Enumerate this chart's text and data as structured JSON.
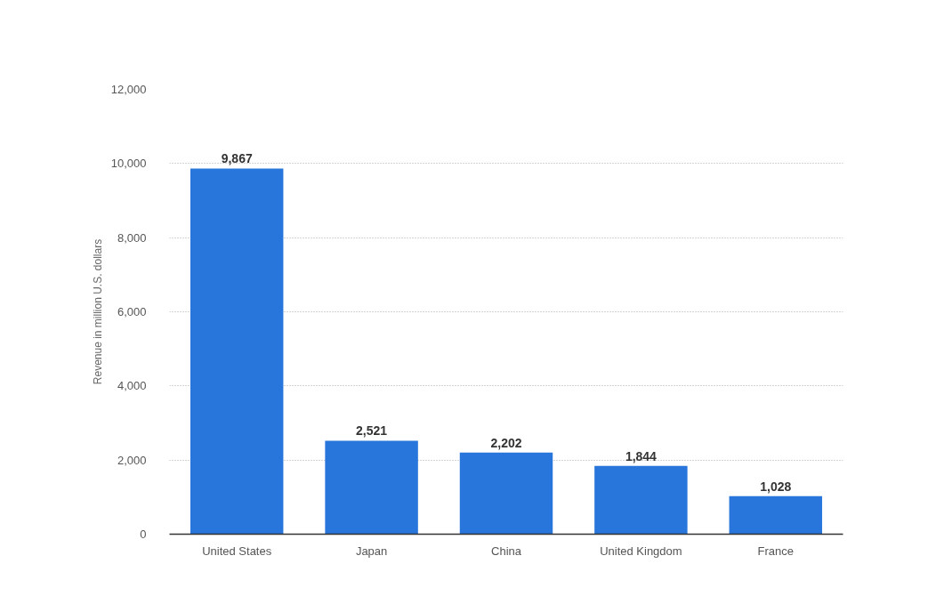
{
  "chart_data": {
    "type": "bar",
    "ylabel": "Revenue in million U.S. dollars",
    "categories": [
      "United States",
      "Japan",
      "China",
      "United Kingdom",
      "France"
    ],
    "values": [
      9867,
      2521,
      2202,
      1844,
      1028
    ],
    "color": "#2876dc",
    "ylim": [
      0,
      12000
    ],
    "yticks": [
      0,
      {
        "value": 2000,
        "label": "2,000"
      },
      {
        "value": 4000,
        "label": "4,000"
      },
      {
        "value": 6000,
        "label": "6,000"
      },
      {
        "value": 8000,
        "label": "8,000"
      },
      {
        "value": 10000,
        "label": "10,000"
      },
      {
        "value": 12000,
        "label": "12,000"
      }
    ],
    "value_labels": [
      "9,867",
      "2,521",
      "2,202",
      "1,844",
      "1,028"
    ],
    "grid": "y"
  }
}
